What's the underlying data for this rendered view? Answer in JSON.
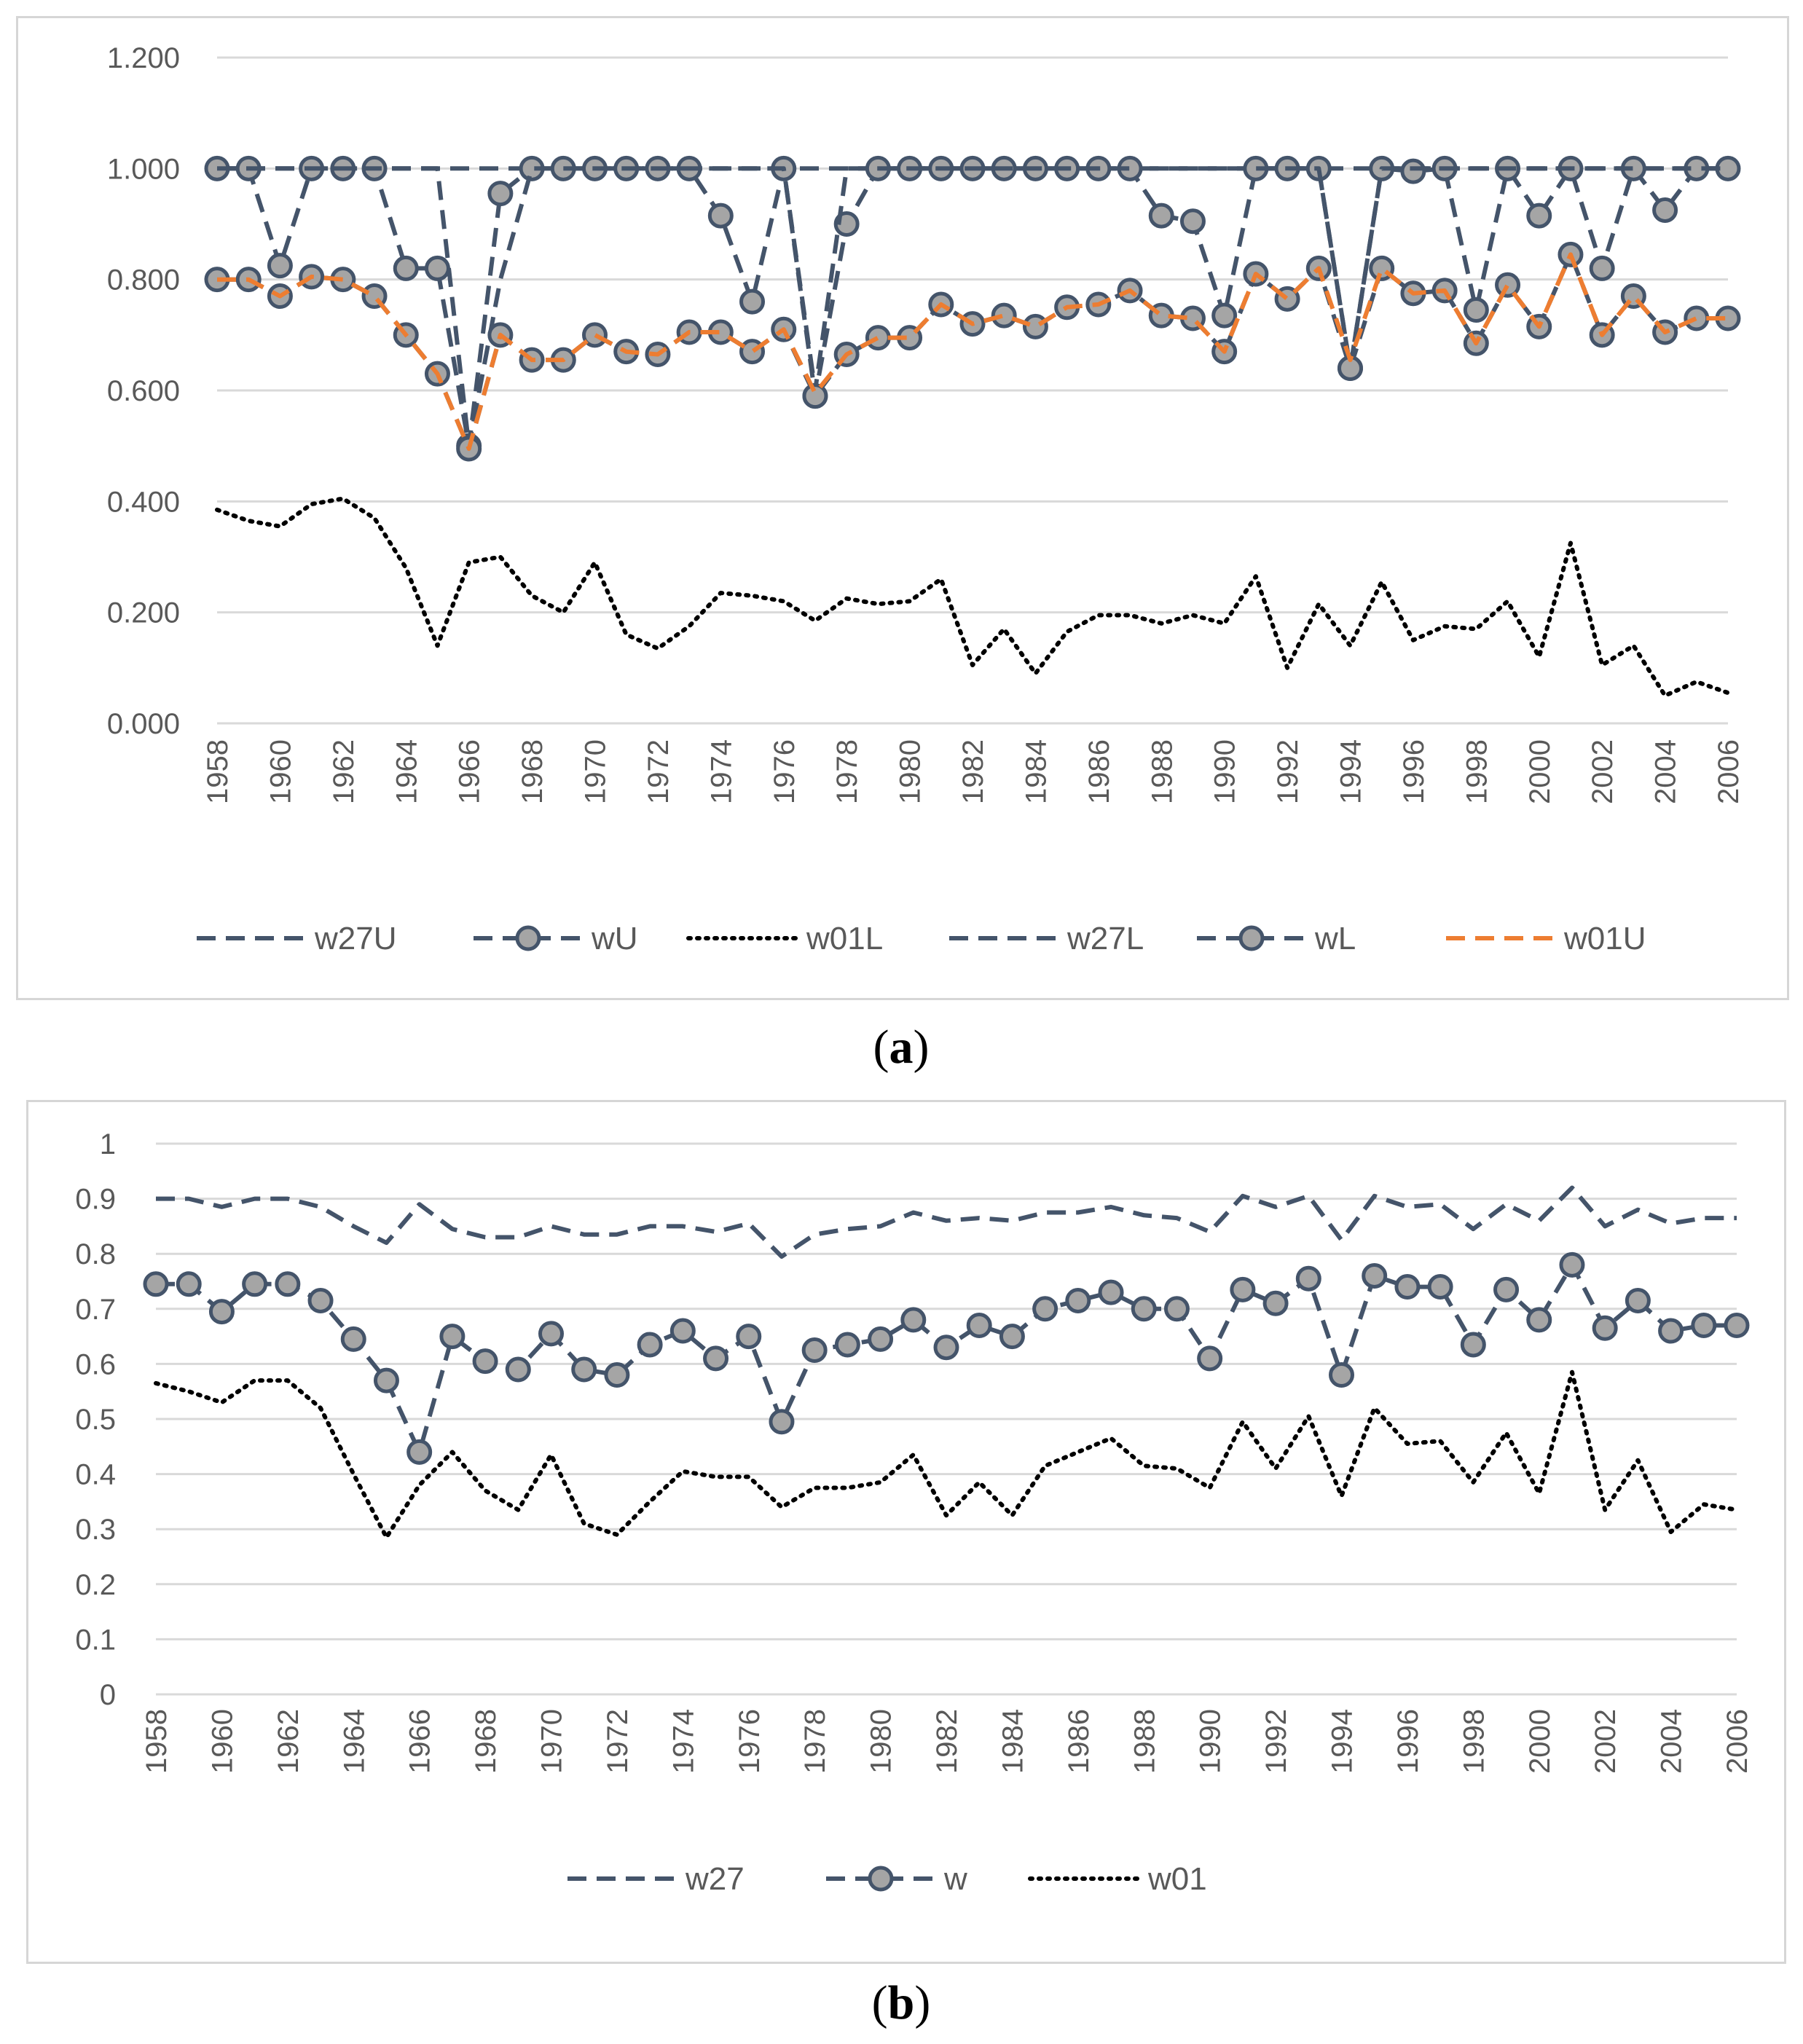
{
  "captions": {
    "a": "a",
    "b": "b"
  },
  "chart_data": [
    {
      "id": "a",
      "type": "line",
      "title": "",
      "xlabel": "",
      "ylabel": "",
      "ylim": [
        0,
        1.2
      ],
      "yticks": [
        "0.000",
        "0.200",
        "0.400",
        "0.600",
        "0.800",
        "1.000",
        "1.200"
      ],
      "yticks_values": [
        0,
        0.2,
        0.4,
        0.6,
        0.8,
        1.0,
        1.2
      ],
      "x": [
        1958,
        1959,
        1960,
        1961,
        1962,
        1963,
        1964,
        1965,
        1966,
        1967,
        1968,
        1969,
        1970,
        1971,
        1972,
        1973,
        1974,
        1975,
        1976,
        1977,
        1978,
        1979,
        1980,
        1981,
        1982,
        1983,
        1984,
        1985,
        1986,
        1987,
        1988,
        1989,
        1990,
        1991,
        1992,
        1993,
        1994,
        1995,
        1996,
        1997,
        1998,
        1999,
        2000,
        2001,
        2002,
        2003,
        2004,
        2005,
        2006
      ],
      "xtick_labels": [
        "1958",
        "1960",
        "1962",
        "1964",
        "1966",
        "1968",
        "1970",
        "1972",
        "1974",
        "1976",
        "1978",
        "1980",
        "1982",
        "1984",
        "1986",
        "1988",
        "1990",
        "1992",
        "1994",
        "1996",
        "1998",
        "2000",
        "2002",
        "2004",
        "2006"
      ],
      "grid": true,
      "legend_position": "bottom",
      "series": [
        {
          "name": "w27U",
          "style": "dashed",
          "color": "#44546a",
          "markers": false,
          "values": [
            1,
            1,
            1,
            1,
            1,
            1,
            1,
            1,
            1,
            1,
            1,
            1,
            1,
            1,
            1,
            1,
            1,
            1,
            1,
            1,
            1,
            1,
            1,
            1,
            1,
            1,
            1,
            1,
            1,
            1,
            1,
            1,
            1,
            1,
            1,
            1,
            1,
            1,
            1,
            1,
            1,
            1,
            1,
            1,
            1,
            1,
            1,
            1,
            1
          ]
        },
        {
          "name": "wU",
          "style": "dashed",
          "color": "#44546a",
          "markers": true,
          "values": [
            1,
            1,
            0.825,
            1,
            1,
            1,
            0.82,
            0.82,
            0.5,
            0.955,
            1,
            1,
            1,
            1,
            1,
            1,
            0.915,
            0.76,
            1,
            0.59,
            0.9,
            1,
            1,
            1,
            1,
            1,
            1,
            1,
            1,
            1,
            0.915,
            0.905,
            0.735,
            1,
            1,
            1,
            0.64,
            1,
            0.995,
            1,
            0.745,
            1,
            0.915,
            1,
            0.82,
            1,
            0.925,
            1,
            1
          ]
        },
        {
          "name": "w01L",
          "style": "dotted",
          "color": "#000000",
          "markers": false,
          "values": [
            0.385,
            0.365,
            0.355,
            0.395,
            0.405,
            0.37,
            0.28,
            0.14,
            0.29,
            0.3,
            0.23,
            0.2,
            0.29,
            0.16,
            0.135,
            0.175,
            0.235,
            0.23,
            0.22,
            0.185,
            0.225,
            0.215,
            0.22,
            0.26,
            0.105,
            0.17,
            0.09,
            0.165,
            0.195,
            0.195,
            0.18,
            0.195,
            0.18,
            0.265,
            0.1,
            0.215,
            0.14,
            0.255,
            0.15,
            0.175,
            0.17,
            0.22,
            0.12,
            0.325,
            0.105,
            0.14,
            0.05,
            0.075,
            0.055
          ]
        },
        {
          "name": "w27L",
          "style": "dashed",
          "color": "#44546a",
          "markers": false,
          "values": [
            1,
            1,
            1,
            1,
            1,
            1,
            1,
            1,
            0.5,
            0.8,
            1,
            1,
            1,
            1,
            1,
            1,
            1,
            1,
            1,
            0.6,
            1,
            1,
            1,
            1,
            1,
            1,
            1,
            1,
            1,
            1,
            1,
            1,
            1,
            1,
            1,
            1,
            0.64,
            1,
            1,
            1,
            1,
            1,
            1,
            1,
            1,
            1,
            1,
            1,
            1
          ]
        },
        {
          "name": "wL",
          "style": "dashed",
          "color": "#44546a",
          "markers": true,
          "values": [
            0.8,
            0.8,
            0.77,
            0.805,
            0.8,
            0.77,
            0.7,
            0.63,
            0.495,
            0.7,
            0.655,
            0.655,
            0.7,
            0.67,
            0.665,
            0.705,
            0.705,
            0.67,
            0.71,
            0.59,
            0.665,
            0.695,
            0.695,
            0.755,
            0.72,
            0.735,
            0.715,
            0.75,
            0.755,
            0.78,
            0.735,
            0.73,
            0.67,
            0.81,
            0.765,
            0.82,
            0.64,
            0.82,
            0.775,
            0.78,
            0.685,
            0.79,
            0.715,
            0.845,
            0.7,
            0.77,
            0.705,
            0.73,
            0.73
          ]
        },
        {
          "name": "w01U",
          "style": "dashed",
          "color": "#ed7d31",
          "markers": false,
          "values": [
            0.8,
            0.8,
            0.77,
            0.805,
            0.8,
            0.77,
            0.7,
            0.63,
            0.495,
            0.7,
            0.655,
            0.655,
            0.7,
            0.67,
            0.665,
            0.705,
            0.705,
            0.67,
            0.71,
            0.595,
            0.665,
            0.695,
            0.695,
            0.755,
            0.72,
            0.735,
            0.715,
            0.75,
            0.755,
            0.78,
            0.735,
            0.73,
            0.67,
            0.81,
            0.765,
            0.82,
            0.655,
            0.82,
            0.775,
            0.78,
            0.685,
            0.79,
            0.715,
            0.845,
            0.7,
            0.77,
            0.705,
            0.73,
            0.73
          ]
        }
      ]
    },
    {
      "id": "b",
      "type": "line",
      "title": "",
      "xlabel": "",
      "ylabel": "",
      "ylim": [
        0,
        1
      ],
      "yticks": [
        "0",
        "0.1",
        "0.2",
        "0.3",
        "0.4",
        "0.5",
        "0.6",
        "0.7",
        "0.8",
        "0.9",
        "1"
      ],
      "yticks_values": [
        0,
        0.1,
        0.2,
        0.3,
        0.4,
        0.5,
        0.6,
        0.7,
        0.8,
        0.9,
        1.0
      ],
      "x": [
        1958,
        1959,
        1960,
        1961,
        1962,
        1963,
        1964,
        1965,
        1966,
        1967,
        1968,
        1969,
        1970,
        1971,
        1972,
        1973,
        1974,
        1975,
        1976,
        1977,
        1978,
        1979,
        1980,
        1981,
        1982,
        1983,
        1984,
        1985,
        1986,
        1987,
        1988,
        1989,
        1990,
        1991,
        1992,
        1993,
        1994,
        1995,
        1996,
        1997,
        1998,
        1999,
        2000,
        2001,
        2002,
        2003,
        2004,
        2005,
        2006
      ],
      "xtick_labels": [
        "1958",
        "1960",
        "1962",
        "1964",
        "1966",
        "1968",
        "1970",
        "1972",
        "1974",
        "1976",
        "1978",
        "1980",
        "1982",
        "1984",
        "1986",
        "1988",
        "1990",
        "1992",
        "1994",
        "1996",
        "1998",
        "2000",
        "2002",
        "2004",
        "2006"
      ],
      "grid": true,
      "legend_position": "bottom",
      "series": [
        {
          "name": "w27",
          "style": "dashed",
          "color": "#44546a",
          "markers": false,
          "values": [
            0.9,
            0.9,
            0.885,
            0.9,
            0.9,
            0.885,
            0.85,
            0.82,
            0.89,
            0.845,
            0.83,
            0.83,
            0.85,
            0.835,
            0.835,
            0.85,
            0.85,
            0.84,
            0.855,
            0.795,
            0.835,
            0.845,
            0.85,
            0.875,
            0.86,
            0.865,
            0.86,
            0.875,
            0.875,
            0.885,
            0.87,
            0.865,
            0.84,
            0.905,
            0.885,
            0.905,
            0.825,
            0.905,
            0.885,
            0.89,
            0.845,
            0.89,
            0.86,
            0.92,
            0.85,
            0.88,
            0.855,
            0.865,
            0.865
          ]
        },
        {
          "name": "w",
          "style": "dashed",
          "color": "#44546a",
          "markers": true,
          "values": [
            0.745,
            0.745,
            0.695,
            0.745,
            0.745,
            0.715,
            0.645,
            0.57,
            0.44,
            0.65,
            0.605,
            0.59,
            0.655,
            0.59,
            0.58,
            0.635,
            0.66,
            0.61,
            0.65,
            0.495,
            0.625,
            0.635,
            0.645,
            0.68,
            0.63,
            0.67,
            0.65,
            0.7,
            0.715,
            0.73,
            0.7,
            0.7,
            0.61,
            0.735,
            0.71,
            0.755,
            0.58,
            0.76,
            0.74,
            0.74,
            0.635,
            0.735,
            0.68,
            0.78,
            0.665,
            0.715,
            0.66,
            0.67,
            0.67
          ]
        },
        {
          "name": "w01",
          "style": "dotted",
          "color": "#000000",
          "markers": false,
          "values": [
            0.565,
            0.55,
            0.53,
            0.57,
            0.57,
            0.52,
            0.4,
            0.285,
            0.38,
            0.44,
            0.37,
            0.335,
            0.435,
            0.31,
            0.29,
            0.35,
            0.405,
            0.395,
            0.395,
            0.34,
            0.375,
            0.375,
            0.385,
            0.435,
            0.325,
            0.385,
            0.325,
            0.415,
            0.44,
            0.465,
            0.415,
            0.41,
            0.375,
            0.495,
            0.41,
            0.505,
            0.36,
            0.52,
            0.455,
            0.46,
            0.385,
            0.475,
            0.365,
            0.585,
            0.335,
            0.425,
            0.295,
            0.345,
            0.335
          ]
        }
      ]
    }
  ]
}
